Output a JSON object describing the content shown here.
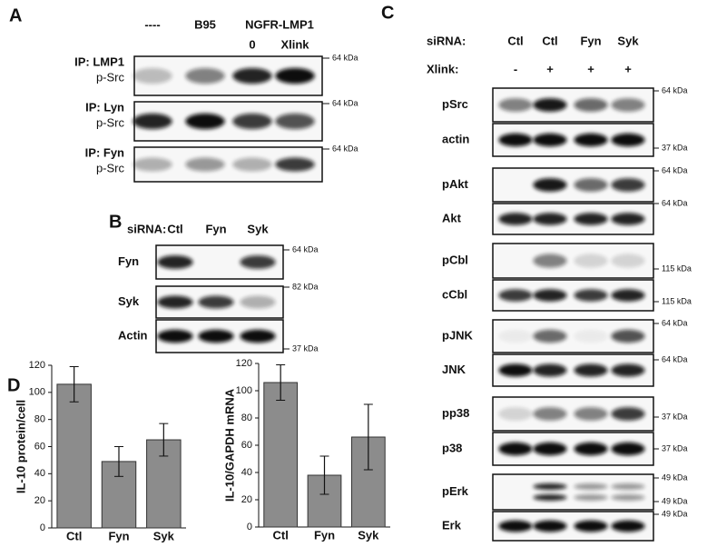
{
  "panel_a": {
    "label": "A",
    "columns": [
      "----",
      "B95",
      "NGFR-LMP1"
    ],
    "subcolumns": [
      "0",
      "Xlink"
    ],
    "rows": [
      {
        "ip": "IP: LMP1",
        "target": "p-Src",
        "marker": "64 kDa"
      },
      {
        "ip": "IP: Lyn",
        "target": "p-Src",
        "marker": "64 kDa"
      },
      {
        "ip": "IP: Fyn",
        "target": "p-Src",
        "marker": "64 kDa"
      }
    ]
  },
  "panel_b": {
    "label": "B",
    "siRNA_label": "siRNA:",
    "columns": [
      "Ctl",
      "Fyn",
      "Syk"
    ],
    "rows": [
      {
        "name": "Fyn",
        "markers": [
          "64 kDa"
        ]
      },
      {
        "name": "Syk",
        "markers": [
          "82 kDa"
        ]
      },
      {
        "name": "Actin",
        "markers": [
          "37 kDa"
        ]
      }
    ]
  },
  "panel_c": {
    "label": "C",
    "siRNA_label": "siRNA:",
    "siRNA": [
      "Ctl",
      "Ctl",
      "Fyn",
      "Syk"
    ],
    "xlink_label": "Xlink:",
    "xlink": [
      "-",
      "+",
      "+",
      "+"
    ],
    "rows": [
      {
        "name": "pSrc",
        "markers": [
          "64 kDa"
        ]
      },
      {
        "name": "actin",
        "markers": [
          "37 kDa"
        ]
      },
      {
        "name": "pAkt",
        "markers": [
          "64 kDa"
        ]
      },
      {
        "name": "Akt",
        "markers": [
          "64 kDa"
        ]
      },
      {
        "name": "pCbl",
        "markers": [
          "115 kDa"
        ]
      },
      {
        "name": "cCbl",
        "markers": [
          "115 kDa"
        ]
      },
      {
        "name": "pJNK",
        "markers": [
          "64 kDa"
        ]
      },
      {
        "name": "JNK",
        "markers": [
          "64 kDa"
        ]
      },
      {
        "name": "pp38",
        "markers": [
          "37 kDa"
        ]
      },
      {
        "name": "p38",
        "markers": [
          "37 kDa"
        ]
      },
      {
        "name": "pErk",
        "markers": [
          "49 kDa",
          "49 kDa"
        ]
      },
      {
        "name": "Erk",
        "markers": [
          "49 kDa"
        ]
      }
    ]
  },
  "panel_d": {
    "label": "D"
  },
  "chart_data": [
    {
      "type": "bar",
      "ylabel": "IL-10 protein/cell",
      "categories": [
        "Ctl",
        "Fyn",
        "Syk"
      ],
      "values": [
        106,
        49,
        65
      ],
      "errors": [
        13,
        11,
        12
      ],
      "color": "#8c8c8c",
      "ylim": [
        0,
        120
      ],
      "yticks": [
        0,
        20,
        40,
        60,
        80,
        100,
        120
      ]
    },
    {
      "type": "bar",
      "ylabel": "IL-10/GAPDH mRNA",
      "categories": [
        "Ctl",
        "Fyn",
        "Syk"
      ],
      "values": [
        106,
        38,
        66
      ],
      "errors": [
        13,
        14,
        24
      ],
      "color": "#8c8c8c",
      "ylim": [
        0,
        120
      ],
      "yticks": [
        0,
        20,
        40,
        60,
        80,
        100,
        120
      ]
    }
  ]
}
